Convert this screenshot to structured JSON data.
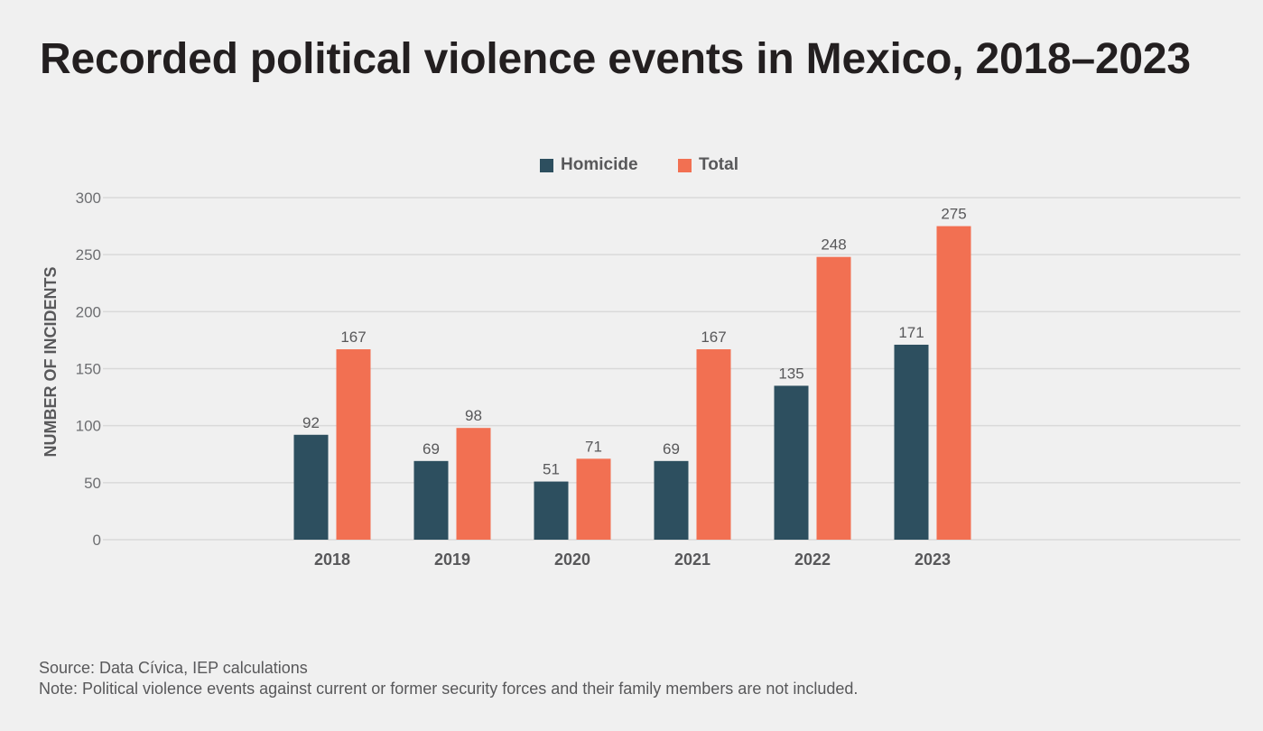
{
  "title": "Recorded political violence events in Mexico, 2018–2023",
  "footer": {
    "source": "Source: Data Cívica, IEP calculations",
    "note": "Note: Political violence events against current or former security forces and their family members are not included."
  },
  "colors": {
    "homicide": "#2d4f5f",
    "total": "#f27052",
    "gridline": "#d9d9d9",
    "background": "#f0f0f0"
  },
  "chart_data": {
    "type": "bar",
    "title": "Recorded political violence events in Mexico, 2018–2023",
    "xlabel": "",
    "ylabel": "NUMBER OF INCIDENTS",
    "categories": [
      "2018",
      "2019",
      "2020",
      "2021",
      "2022",
      "2023"
    ],
    "series": [
      {
        "name": "Homicide",
        "color": "#2d4f5f",
        "values": [
          92,
          69,
          51,
          69,
          135,
          171
        ]
      },
      {
        "name": "Total",
        "color": "#f27052",
        "values": [
          167,
          98,
          71,
          167,
          248,
          275
        ]
      }
    ],
    "ylim": [
      0,
      300
    ],
    "yticks": [
      0,
      50,
      100,
      150,
      200,
      250,
      300
    ],
    "grid": true,
    "legend_position": "top-center",
    "data_labels": true
  }
}
